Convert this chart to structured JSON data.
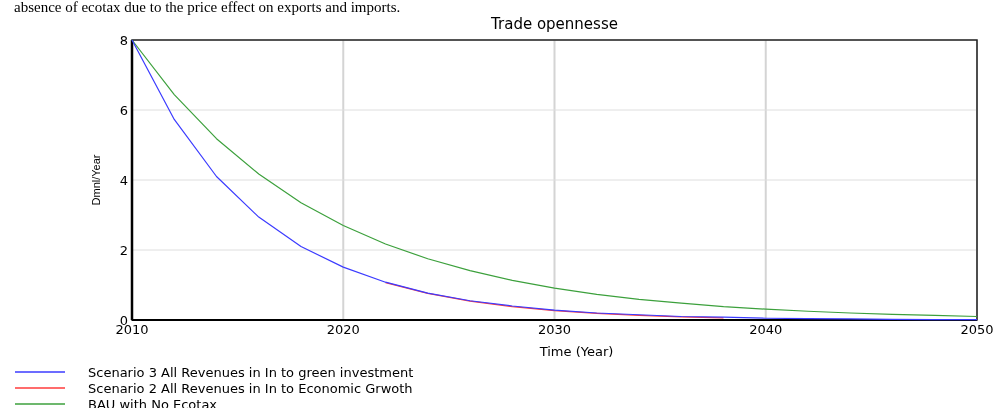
{
  "chart_data": {
    "type": "line",
    "title": "Trade opennesse",
    "xlabel": "Time (Year)",
    "ylabel": "Dmnl/Year",
    "annotations": [
      "absence of ecotax due to the price effect on exports and imports."
    ],
    "x": [
      2010,
      2012,
      2014,
      2016,
      2018,
      2020,
      2022,
      2024,
      2026,
      2028,
      2030,
      2032,
      2034,
      2036,
      2038,
      2040,
      2042,
      2044,
      2046,
      2048,
      2050
    ],
    "series": [
      {
        "name": "Scenario 3 All Revenues in In to green investment",
        "color": "#3b3bff",
        "values": [
          8,
          5.73,
          4.1,
          2.94,
          2.1,
          1.51,
          1.08,
          0.77,
          0.55,
          0.4,
          0.28,
          0.2,
          0.15,
          0.1,
          0.08,
          0.05,
          0.04,
          0.03,
          0.02,
          0.01,
          0.01
        ]
      },
      {
        "name": "Scenario 2 All Revenues in In to Economic Grwoth",
        "color": "#ff3b3b",
        "values": [
          null,
          null,
          null,
          null,
          null,
          null,
          1.07,
          0.76,
          0.54,
          0.38,
          0.27,
          0.19,
          0.13,
          0.09,
          0.06,
          null,
          null,
          null,
          null,
          null,
          null
        ]
      },
      {
        "name": "BAU with No Ecotax",
        "color": "#3ca03c",
        "values": [
          8,
          6.44,
          5.18,
          4.17,
          3.35,
          2.7,
          2.17,
          1.75,
          1.41,
          1.13,
          0.91,
          0.73,
          0.59,
          0.48,
          0.38,
          0.31,
          0.25,
          0.2,
          0.16,
          0.13,
          0.1
        ]
      }
    ],
    "xlim": [
      2010,
      2050
    ],
    "xticks": [
      2010,
      2020,
      2030,
      2040,
      2050
    ],
    "ylim": [
      0,
      8
    ],
    "yticks": [
      0,
      2,
      4,
      6,
      8
    ],
    "grid": true,
    "legend": "bottom left",
    "marker": "none",
    "line_style": "solid"
  }
}
